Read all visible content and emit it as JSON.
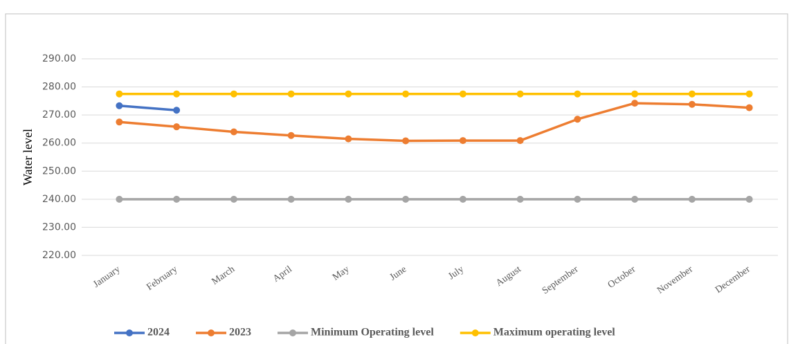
{
  "chart_data": {
    "type": "line",
    "y_label": "Water level",
    "categories": [
      "January",
      "February",
      "March",
      "April",
      "May",
      "June",
      "July",
      "August",
      "September",
      "October",
      "November",
      "December"
    ],
    "series": [
      {
        "name": "2024",
        "color": "#4472c4",
        "values": [
          273.3,
          271.7,
          null,
          null,
          null,
          null,
          null,
          null,
          null,
          null,
          null,
          null
        ]
      },
      {
        "name": "2023",
        "color": "#ed7d31",
        "values": [
          267.5,
          265.8,
          264.0,
          262.7,
          261.5,
          260.8,
          260.9,
          260.9,
          268.5,
          274.2,
          273.8,
          272.6
        ]
      },
      {
        "name": "Minimum Operating level",
        "color": "#a5a5a5",
        "values": [
          240,
          240,
          240,
          240,
          240,
          240,
          240,
          240,
          240,
          240,
          240,
          240
        ]
      },
      {
        "name": "Maximum operating level",
        "color": "#ffc000",
        "values": [
          277.5,
          277.5,
          277.5,
          277.5,
          277.5,
          277.5,
          277.5,
          277.5,
          277.5,
          277.5,
          277.5,
          277.5
        ]
      }
    ],
    "ylim": [
      220,
      290
    ],
    "yticks": [
      {
        "value": 220,
        "label": "220.00"
      },
      {
        "value": 230,
        "label": "230.00"
      },
      {
        "value": 240,
        "label": "240.00"
      },
      {
        "value": 250,
        "label": "250.00"
      },
      {
        "value": 260,
        "label": "260.00"
      },
      {
        "value": 270,
        "label": "270.00"
      },
      {
        "value": 280,
        "label": "280.00"
      },
      {
        "value": 290,
        "label": "290.00"
      }
    ],
    "grid": true,
    "legend": "bottom"
  }
}
